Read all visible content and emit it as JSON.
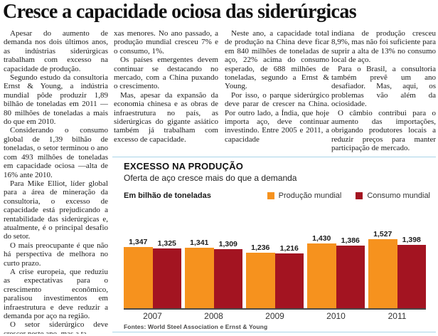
{
  "headline": "Cresce a capacidade ociosa das siderúrgicas",
  "article": {
    "columns": [
      {
        "continues": false,
        "paragraphs": [
          "Apesar do aumento de demanda nos dois últimos anos, as indústrias siderúrgicas trabalham com excesso na capacidade de produção.",
          "Segundo estudo da consultoria Ernst & Young, a indústria mundial pôde produzir 1,89 bilhão de toneladas em 2011 —80 milhões de toneladas a mais do que em 2010.",
          "Considerando o consumo global de 1,39 bilhão de toneladas, o setor terminou o ano com 493 milhões de toneladas em capacidade ociosa —alta de 16% ante 2010.",
          "Para Mike Elliot, líder global para a área de mineração da consultoria, o excesso de capacidade está prejudicando a rentabilidade das siderúrgicas e, atualmente, é o principal desafio do setor.",
          "O mais preocupante é que não há perspectiva de melhora no curto prazo.",
          "A crise europeia, que reduziu as expectativas para o crescimento econômico, paralisou investimentos em infraestrutura e deve reduzir a demanda por aço na região.",
          "O setor siderúrgico deve crescer neste ano, mas a ta-"
        ]
      },
      {
        "continues": true,
        "paragraphs": [
          "xas menores. No ano passado, a produção mundial cresceu 7% e o consumo, 1%.",
          "Os países emergentes devem continuar se destacando no mercado, com a China puxando o crescimento.",
          "Mas, apesar da expansão da economia chinesa e as obras de infraestrutura no país, as siderúrgicas do gigante asiático também já trabalham com excesso de capacidade."
        ]
      },
      {
        "continues": false,
        "paragraphs": [
          "Neste ano, a capacidade total de produção na China deve ficar em 840 milhões de toneladas de aço, 22% acima do consumo esperado, de 688 milhões de toneladas, segundo a Ernst & Young.",
          "Por isso, o parque siderúrgico deve parar de crescer na China. Por outro lado, a Índia, que hoje importa aço, deve continuar investindo. Entre 2005 e 2011, a capacidade"
        ]
      },
      {
        "continues": true,
        "paragraphs": [
          "indiana de produção cresceu 8,9%, mas não foi suficiente para suprir a alta de 13% no consumo local de aço.",
          "Para o Brasil, a consultoria também prevê um ano desafiador. Mas, aqui, os problemas vão além da ociosidade.",
          "O câmbio contribui para o aumento das importações, obrigando produtores locais a reduzir preços para manter participação de mercado."
        ]
      }
    ]
  },
  "chart": {
    "kicker": "EXCESSO NA PRODUÇÃO",
    "subtitle": "Oferta de aço cresce mais do que a demanda",
    "unit_label": "Em bilhão de toneladas",
    "source": "Fontes: World Steel Association e Ernst & Young",
    "colors": {
      "production": "#F6921E",
      "consumption": "#A31421",
      "rule": "#A9D3E8",
      "axis": "#4A4A4A"
    }
  },
  "chart_data": {
    "type": "bar",
    "title": "EXCESSO NA PRODUÇÃO",
    "subtitle": "Oferta de aço cresce mais do que a demanda",
    "ylabel": "Em bilhão de toneladas",
    "categories": [
      "2007",
      "2008",
      "2009",
      "2010",
      "2011"
    ],
    "series": [
      {
        "name": "Produção mundial",
        "color": "#F6921E",
        "values": [
          1.347,
          1.341,
          1.236,
          1.43,
          1.527
        ],
        "labels": [
          "1,347",
          "1,341",
          "1,236",
          "1,430",
          "1,527"
        ]
      },
      {
        "name": "Consumo mundial",
        "color": "#A31421",
        "values": [
          1.325,
          1.309,
          1.216,
          1.386,
          1.398
        ],
        "labels": [
          "1,325",
          "1,309",
          "1,216",
          "1,386",
          "1,398"
        ]
      }
    ],
    "ylim": [
      0,
      1.6
    ],
    "grid": false,
    "legend_position": "top-right"
  }
}
